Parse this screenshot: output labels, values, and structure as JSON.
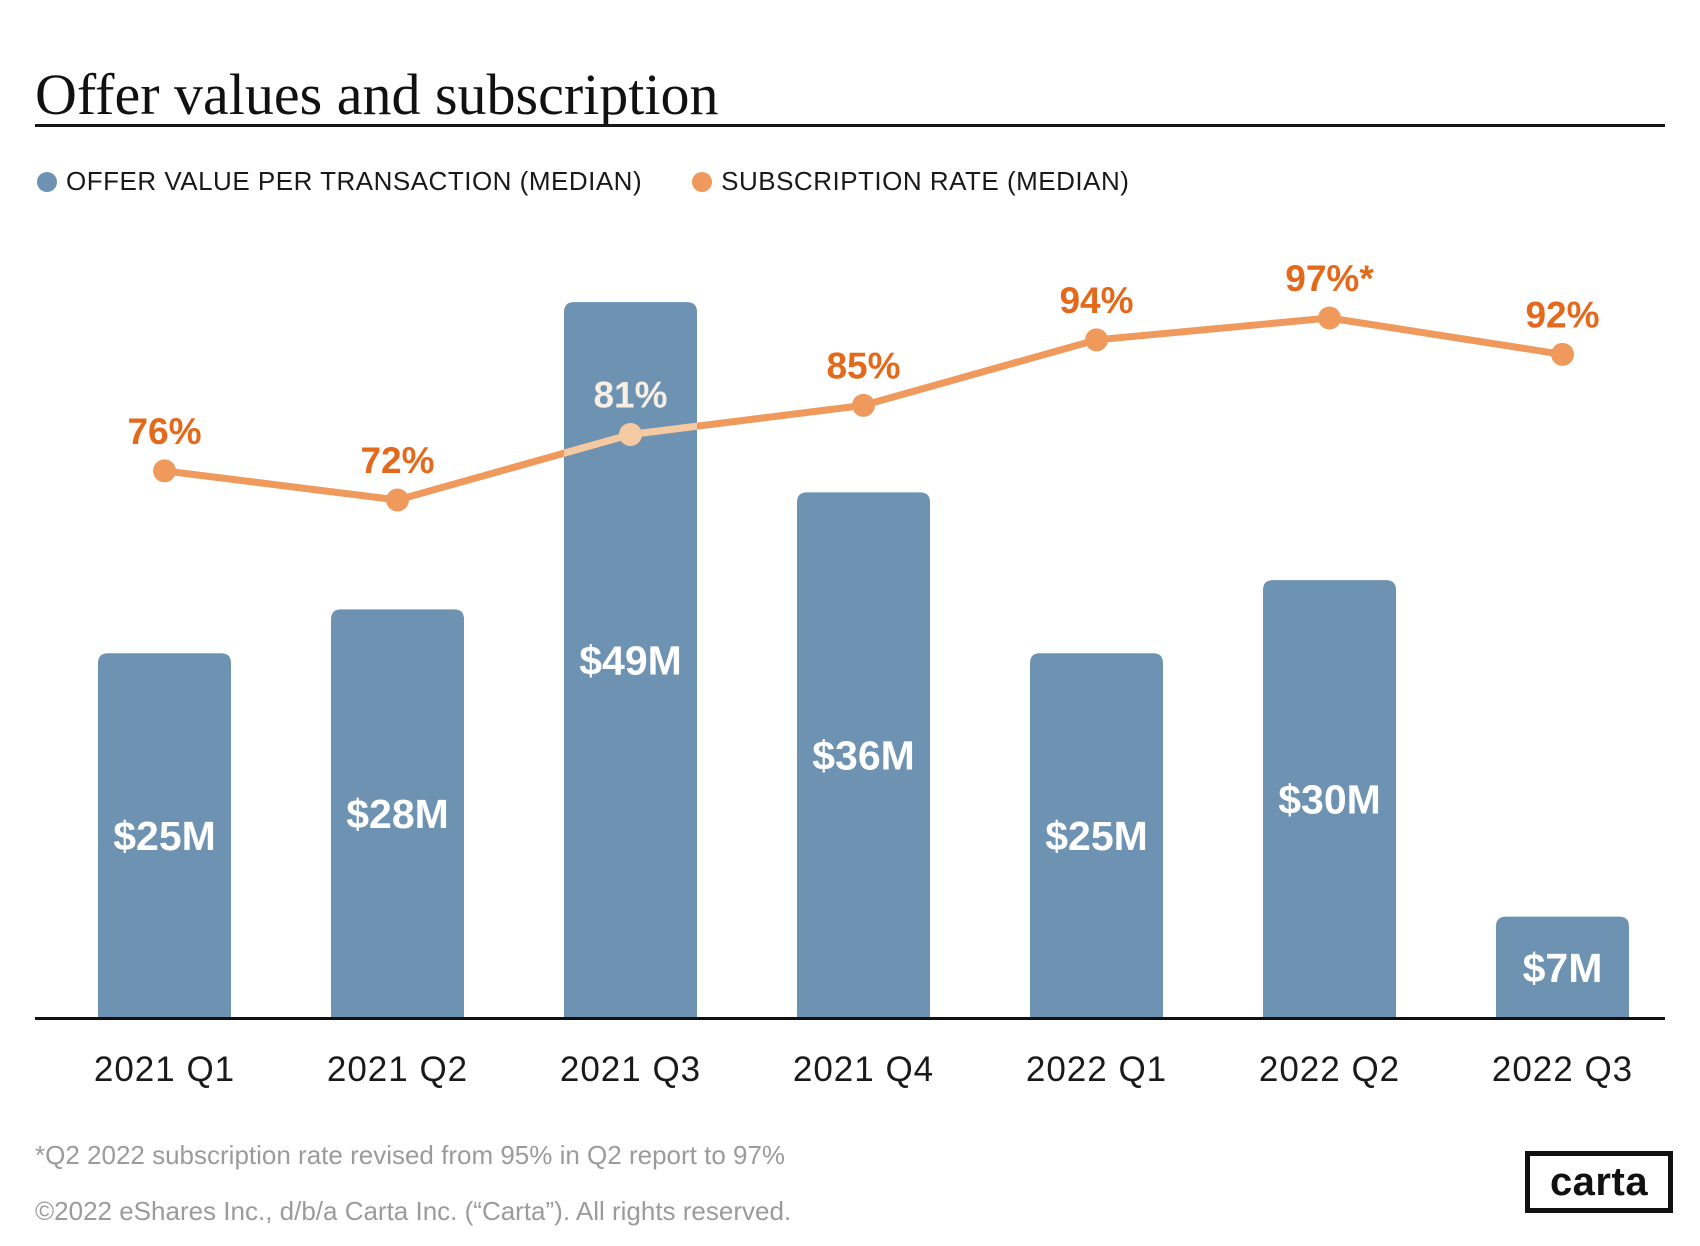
{
  "header": {
    "title": "Offer values and subscription"
  },
  "legend": [
    {
      "label": "OFFER VALUE PER TRANSACTION (MEDIAN)",
      "color": "#6E93B2"
    },
    {
      "label": "SUBSCRIPTION RATE (MEDIAN)",
      "color": "#EF9A5C"
    }
  ],
  "chart_data": {
    "type": "bar",
    "title": "Offer values and subscription",
    "categories": [
      "2021 Q1",
      "2021 Q2",
      "2021 Q3",
      "2021 Q4",
      "2022 Q1",
      "2022 Q2",
      "2022 Q3"
    ],
    "series": [
      {
        "name": "OFFER VALUE PER TRANSACTION (MEDIAN)",
        "type": "bar",
        "unit": "$M",
        "values": [
          25,
          28,
          49,
          36,
          25,
          30,
          7
        ],
        "labels": [
          "$25M",
          "$28M",
          "$49M",
          "$36M",
          "$25M",
          "$30M",
          "$7M"
        ],
        "color": "#6E93B2",
        "label_color": "#FFFFFF"
      },
      {
        "name": "SUBSCRIPTION RATE (MEDIAN)",
        "type": "line",
        "unit": "%",
        "values": [
          76,
          72,
          81,
          85,
          94,
          97,
          92
        ],
        "labels": [
          "76%",
          "72%",
          "81%",
          "85%",
          "94%",
          "97%*",
          "92%"
        ],
        "color": "#EF9A5C",
        "label_color": "#E5691B",
        "overlap_tint": "#F5C9A2",
        "overlap_label_tint": "#F7EFE3"
      }
    ],
    "bar_axis_range": [
      0,
      52
    ],
    "line_axis_range": [
      0,
      100
    ],
    "grid": false,
    "legend_position": "top-left",
    "xlabel": "",
    "ylabel": ""
  },
  "footnote": "*Q2 2022 subscription rate revised from 95% in Q2 report to 97%",
  "copyright": "©2022 eShares Inc., d/b/a Carta Inc. (“Carta”). All rights reserved.",
  "logo": {
    "text": "carta"
  },
  "axis_color": "#111111"
}
